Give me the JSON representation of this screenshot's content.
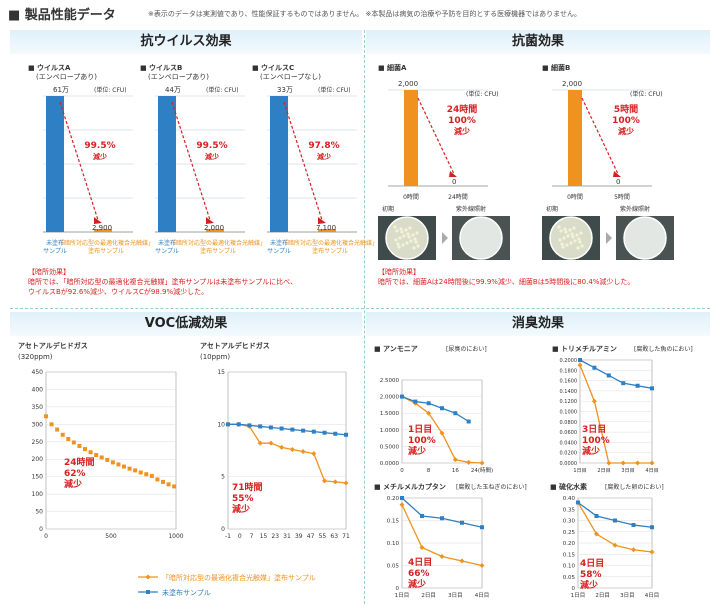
{
  "header": {
    "title": "■ 製品性能データ",
    "note": "※表示のデータは実測値であり、性能保証するものではありません。 ※本製品は病気の治療や予防を目的とする医療機器ではありません。"
  },
  "virus": {
    "title": "抗ウイルス効果",
    "unit": "(単位: CFU)",
    "untreated": "未塗布",
    "untreated2": "サンプル",
    "treated": "「暗所対応型",
    "treated2": "の最適化複合光触媒」",
    "treated3": "塗布サンプル",
    "panels": [
      {
        "name": "■ ウイルスA",
        "sub": "(エンベロープあり)",
        "start": "61万",
        "end": "2,900",
        "pct": "99.5%",
        "red": "減少"
      },
      {
        "name": "■ ウイルスB",
        "sub": "(エンベロープあり)",
        "start": "44万",
        "end": "2,000",
        "pct": "99.5%",
        "red": "減少"
      },
      {
        "name": "■ ウイルスC",
        "sub": "(エンベロープなし)",
        "start": "33万",
        "end": "7,100",
        "pct": "97.8%",
        "red": "減少"
      }
    ],
    "result_title": "【暗所効果】",
    "result1": "暗所では、「暗所対応型の最適化複合光触媒」塗布サンプルは未塗布サンプルに比べ、",
    "result2": "ウイルスBが92.6%減少、ウイルスCが98.9%減少した。"
  },
  "bact": {
    "title": "抗菌効果",
    "unit": "(単位: CFU)",
    "panels": [
      {
        "name": "■ 細菌A",
        "start": "2,000",
        "end": "0",
        "t0": "0時間",
        "t1": "24時間",
        "l1": "24時間",
        "l2": "100%",
        "l3": "減少",
        "p0": "初期",
        "p1": "紫外線照射"
      },
      {
        "name": "■ 細菌B",
        "start": "2,000",
        "end": "0",
        "t0": "0時間",
        "t1": "5時間",
        "l1": "5時間",
        "l2": "100%",
        "l3": "減少",
        "p0": "初期",
        "p1": "紫外線照射"
      }
    ],
    "result_title": "【暗所効果】",
    "result1": "暗所では、細菌Aは24時間後に99.9%減少、細菌Bは5時間後に80.4%減少した。"
  },
  "voc": {
    "title": "VOC低減効果"
  },
  "odor": {
    "title": "消臭効果"
  },
  "legend": {
    "treated": "「暗所対応型の最適化複合光触媒」塗布サンプル",
    "untreated": "未塗布サンプル"
  },
  "chart_data": [
    {
      "type": "line",
      "title": "アセトアルデヒドガス",
      "subtitle": "(320ppm)",
      "xticks": [
        "0",
        "500",
        "1000"
      ],
      "yticks": [
        "0",
        "50",
        "100",
        "150",
        "200",
        "250",
        "300",
        "350",
        "400",
        "450"
      ],
      "ylim": [
        0,
        450
      ],
      "xlim": [
        0,
        1400
      ],
      "series": [
        {
          "name": "treated",
          "x": [
            0,
            60,
            120,
            180,
            240,
            300,
            360,
            420,
            480,
            540,
            600,
            660,
            720,
            780,
            840,
            900,
            960,
            1020,
            1080,
            1140,
            1200,
            1260,
            1320,
            1380
          ],
          "values": [
            323,
            300,
            285,
            270,
            258,
            248,
            238,
            229,
            220,
            212,
            205,
            198,
            191,
            185,
            179,
            173,
            168,
            162,
            157,
            152,
            142,
            135,
            128,
            122
          ]
        }
      ],
      "annot": [
        "24時間",
        "62%",
        "減少"
      ]
    },
    {
      "type": "line",
      "title": "アセトアルデヒドガス",
      "subtitle": "(10ppm)",
      "xticks": [
        "-1",
        "0",
        "7",
        "15",
        "23",
        "31",
        "39",
        "47",
        "55",
        "63",
        "71"
      ],
      "yticks": [
        "0",
        "5",
        "10",
        "15"
      ],
      "ylim": [
        0,
        15
      ],
      "series": [
        {
          "name": "treated",
          "values": [
            10,
            10,
            9.8,
            8.2,
            8.2,
            7.8,
            7.6,
            7.4,
            7.2,
            4.6,
            4.5,
            4.4
          ]
        },
        {
          "name": "untreated",
          "values": [
            10,
            10,
            9.9,
            9.8,
            9.7,
            9.6,
            9.5,
            9.4,
            9.3,
            9.2,
            9.1,
            9.0
          ]
        }
      ],
      "annot": [
        "71時間",
        "55%",
        "減少"
      ]
    },
    {
      "type": "line",
      "title": "■ アンモニア",
      "subtitle": "[尿臭のにおい]",
      "xticks": [
        "0",
        "8",
        "16",
        "24(時間)"
      ],
      "yticks": [
        "0.0000",
        "0.5000",
        "1.0000",
        "1.5000",
        "2.0000",
        "2.5000"
      ],
      "ylim": [
        0,
        2.5
      ],
      "series": [
        {
          "name": "treated",
          "x": [
            0,
            4,
            8,
            12,
            16,
            20,
            24
          ],
          "values": [
            2.0,
            1.8,
            1.5,
            0.9,
            0.1,
            0.02,
            0.0
          ]
        },
        {
          "name": "untreated",
          "x": [
            0,
            4,
            8,
            12,
            16,
            20
          ],
          "values": [
            2.0,
            1.85,
            1.8,
            1.65,
            1.5,
            1.25
          ]
        }
      ],
      "annot": [
        "1日目",
        "100%",
        "減少"
      ]
    },
    {
      "type": "line",
      "title": "■ トリメチルアミン",
      "subtitle": "[腐敗した魚のにおい]",
      "xticks": [
        "1日目",
        "2日目",
        "3日目",
        "4日目"
      ],
      "yticks": [
        "0.0000",
        "0.0200",
        "0.0400",
        "0.0600",
        "0.0800",
        "0.1000",
        "0.1200",
        "0.1400",
        "0.1600",
        "0.1800",
        "0.2000"
      ],
      "ylim": [
        0,
        0.2
      ],
      "series": [
        {
          "name": "treated",
          "values": [
            0.19,
            0.12,
            0.0,
            0.0,
            0.0,
            0.0
          ]
        },
        {
          "name": "untreated",
          "values": [
            0.2,
            0.185,
            0.17,
            0.155,
            0.15,
            0.145
          ]
        }
      ],
      "annot": [
        "3日目",
        "100%",
        "減少"
      ]
    },
    {
      "type": "line",
      "title": "■ メチルメルカプタン",
      "subtitle": "[腐敗した玉ねぎのにおい]",
      "xticks": [
        "1日目",
        "2日目",
        "3日目",
        "4日目"
      ],
      "yticks": [
        "0",
        "0.05",
        "0.10",
        "0.15",
        "0.20"
      ],
      "ylim": [
        0,
        0.2
      ],
      "series": [
        {
          "name": "treated",
          "values": [
            0.185,
            0.09,
            0.07,
            0.06,
            0.05
          ]
        },
        {
          "name": "untreated",
          "values": [
            0.2,
            0.16,
            0.155,
            0.145,
            0.135
          ]
        }
      ],
      "annot": [
        "4日目",
        "66%",
        "減少"
      ]
    },
    {
      "type": "line",
      "title": "■ 硫化水素",
      "subtitle": "[腐敗した卵のにおい]",
      "xticks": [
        "1日目",
        "2日目",
        "3日目",
        "4日目"
      ],
      "yticks": [
        "0",
        "0.05",
        "0.10",
        "0.15",
        "0.20",
        "0.25",
        "0.30",
        "0.35",
        "0.40"
      ],
      "ylim": [
        0,
        0.4
      ],
      "series": [
        {
          "name": "treated",
          "values": [
            0.38,
            0.24,
            0.19,
            0.17,
            0.16
          ]
        },
        {
          "name": "untreated",
          "values": [
            0.38,
            0.32,
            0.3,
            0.28,
            0.27
          ]
        }
      ],
      "annot": [
        "4日目",
        "58%",
        "減少"
      ]
    }
  ]
}
